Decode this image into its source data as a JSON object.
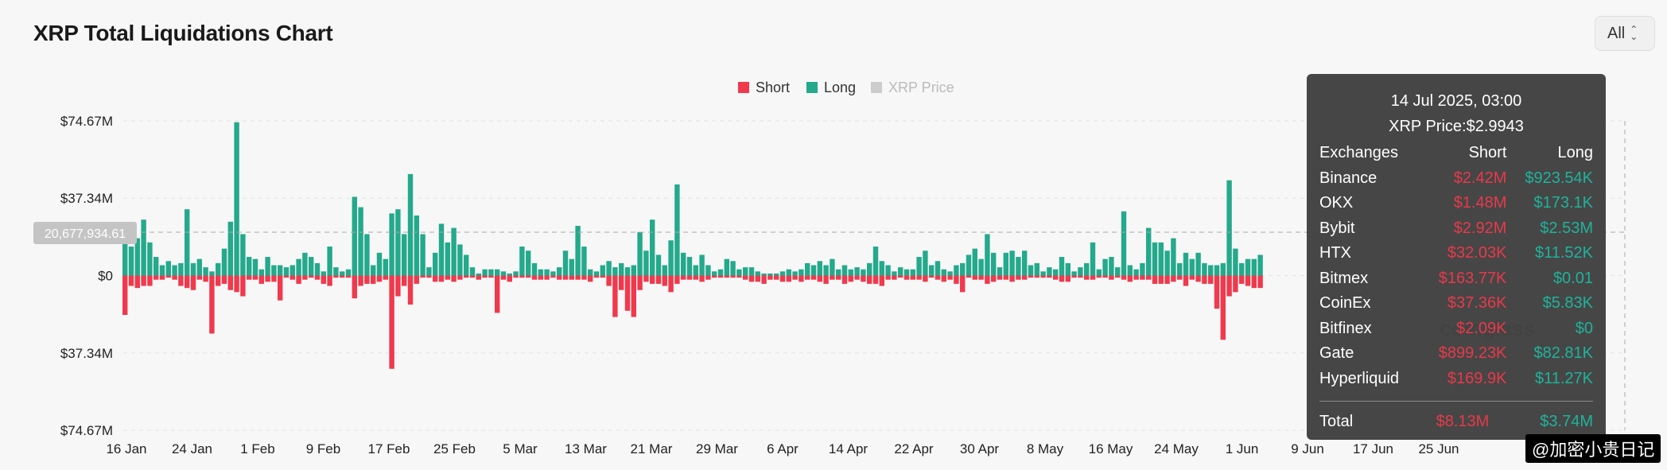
{
  "title": "XRP Total Liquidations Chart",
  "range_select": {
    "value": "All"
  },
  "legend": [
    {
      "name": "Short",
      "color": "#f0394d",
      "active": true
    },
    {
      "name": "Long",
      "color": "#24a98c",
      "active": true
    },
    {
      "name": "XRP Price",
      "color": "#cccccc",
      "active": false
    }
  ],
  "crosshair_value": "20,677,934.61",
  "brand_watermark": "coinglass",
  "watermark": "@加密小贵日记",
  "tooltip": {
    "date": "14 Jul 2025, 03:00",
    "price_label": "XRP Price:",
    "price_value": "$2.9943",
    "headers": [
      "Exchanges",
      "Short",
      "Long"
    ],
    "rows": [
      {
        "exchange": "Binance",
        "short": "$2.42M",
        "long": "$923.54K"
      },
      {
        "exchange": "OKX",
        "short": "$1.48M",
        "long": "$173.1K"
      },
      {
        "exchange": "Bybit",
        "short": "$2.92M",
        "long": "$2.53M"
      },
      {
        "exchange": "HTX",
        "short": "$32.03K",
        "long": "$11.52K"
      },
      {
        "exchange": "Bitmex",
        "short": "$163.77K",
        "long": "$0.01"
      },
      {
        "exchange": "CoinEx",
        "short": "$37.36K",
        "long": "$5.83K"
      },
      {
        "exchange": "Bitfinex",
        "short": "$2.09K",
        "long": "$0"
      },
      {
        "exchange": "Gate",
        "short": "$899.23K",
        "long": "$82.81K"
      },
      {
        "exchange": "Hyperliquid",
        "short": "$169.9K",
        "long": "$11.27K"
      }
    ],
    "total": {
      "label": "Total",
      "short": "$8.13M",
      "long": "$3.74M"
    }
  },
  "chart_data": {
    "type": "bar",
    "ylim": [
      -74.67,
      74.67
    ],
    "y_unit": "M USD",
    "yticks": [
      {
        "value": 74.67,
        "label": "$74.67M"
      },
      {
        "value": 37.34,
        "label": "$37.34M"
      },
      {
        "value": 0,
        "label": "$0"
      },
      {
        "value": -37.34,
        "label": "$37.34M"
      },
      {
        "value": -74.67,
        "label": "$74.67M"
      }
    ],
    "xticks": [
      "16 Jan",
      "24 Jan",
      "1 Feb",
      "9 Feb",
      "17 Feb",
      "25 Feb",
      "5 Mar",
      "13 Mar",
      "21 Mar",
      "29 Mar",
      "6 Apr",
      "14 Apr",
      "22 Apr",
      "30 Apr",
      "8 May",
      "16 May",
      "24 May",
      "1 Jun",
      "9 Jun",
      "17 Jun",
      "25 Jun"
    ],
    "series": [
      {
        "name": "Long",
        "color": "#24a98c",
        "values": [
          16,
          14,
          18,
          27,
          16,
          9,
          5,
          7,
          5,
          6,
          32,
          6,
          8,
          4,
          2,
          6,
          13,
          26,
          74,
          20,
          9,
          8,
          3,
          9,
          5,
          5,
          4,
          5,
          8,
          11,
          9,
          6,
          2,
          14,
          4,
          2,
          3,
          38,
          33,
          20,
          5,
          11,
          8,
          30,
          32,
          20,
          49,
          29,
          20,
          4,
          11,
          25,
          16,
          23,
          15,
          10,
          4,
          1,
          3,
          3,
          3,
          2,
          1,
          2,
          14,
          12,
          6,
          3,
          3,
          2,
          4,
          12,
          8,
          24,
          14,
          3,
          2,
          5,
          7,
          4,
          6,
          4,
          5,
          21,
          12,
          27,
          10,
          5,
          17,
          44,
          11,
          9,
          5,
          10,
          5,
          2,
          3,
          8,
          7,
          3,
          4,
          4,
          2,
          1,
          1,
          1,
          2,
          3,
          2,
          3,
          6,
          5,
          7,
          5,
          8,
          3,
          5,
          3,
          4,
          3,
          6,
          14,
          7,
          5,
          2,
          4,
          3,
          3,
          9,
          12,
          5,
          7,
          3,
          2,
          5,
          6,
          10,
          13,
          8,
          20,
          11,
          4,
          11,
          12,
          9,
          12,
          5,
          6,
          2,
          4,
          3,
          9,
          6,
          2,
          4,
          6,
          16,
          3,
          8,
          9,
          4,
          31,
          5,
          3,
          6,
          23,
          16,
          16,
          12,
          18,
          6,
          11,
          8,
          11,
          6,
          5,
          5,
          6,
          46,
          13,
          6,
          8,
          8,
          10
        ],
        "note": "Positive bar heights in $M, one bar per day from 16 Jan"
      },
      {
        "name": "Short",
        "color": "#f0394d",
        "values": [
          19,
          5,
          6,
          5,
          5,
          2,
          2,
          1,
          2,
          5,
          6,
          7,
          2,
          3,
          28,
          5,
          4,
          7,
          8,
          10,
          2,
          2,
          4,
          3,
          3,
          12,
          1,
          2,
          4,
          2,
          1,
          2,
          4,
          5,
          1,
          1,
          1,
          11,
          5,
          4,
          4,
          3,
          2,
          45,
          10,
          5,
          14,
          4,
          1,
          1,
          3,
          3,
          2,
          3,
          2,
          1,
          1,
          2,
          1,
          1,
          18,
          2,
          3,
          1,
          1,
          1,
          2,
          2,
          2,
          1,
          2,
          2,
          2,
          2,
          2,
          3,
          1,
          1,
          5,
          20,
          7,
          17,
          20,
          7,
          3,
          4,
          4,
          5,
          8,
          4,
          2,
          2,
          2,
          3,
          2,
          1,
          1,
          1,
          1,
          1,
          2,
          3,
          3,
          4,
          2,
          2,
          3,
          3,
          2,
          3,
          2,
          2,
          3,
          4,
          2,
          2,
          4,
          3,
          2,
          3,
          4,
          4,
          5,
          2,
          2,
          1,
          2,
          2,
          2,
          3,
          1,
          2,
          3,
          2,
          4,
          8,
          1,
          2,
          2,
          4,
          3,
          2,
          2,
          3,
          2,
          2,
          1,
          1,
          1,
          1,
          2,
          3,
          3,
          1,
          1,
          2,
          2,
          1,
          1,
          2,
          1,
          2,
          3,
          2,
          2,
          2,
          4,
          4,
          4,
          3,
          2,
          5,
          2,
          3,
          4,
          4,
          16,
          31,
          10,
          8,
          4,
          5,
          6,
          6
        ],
        "note": "Magnitudes in $M drawn below zero"
      }
    ]
  }
}
